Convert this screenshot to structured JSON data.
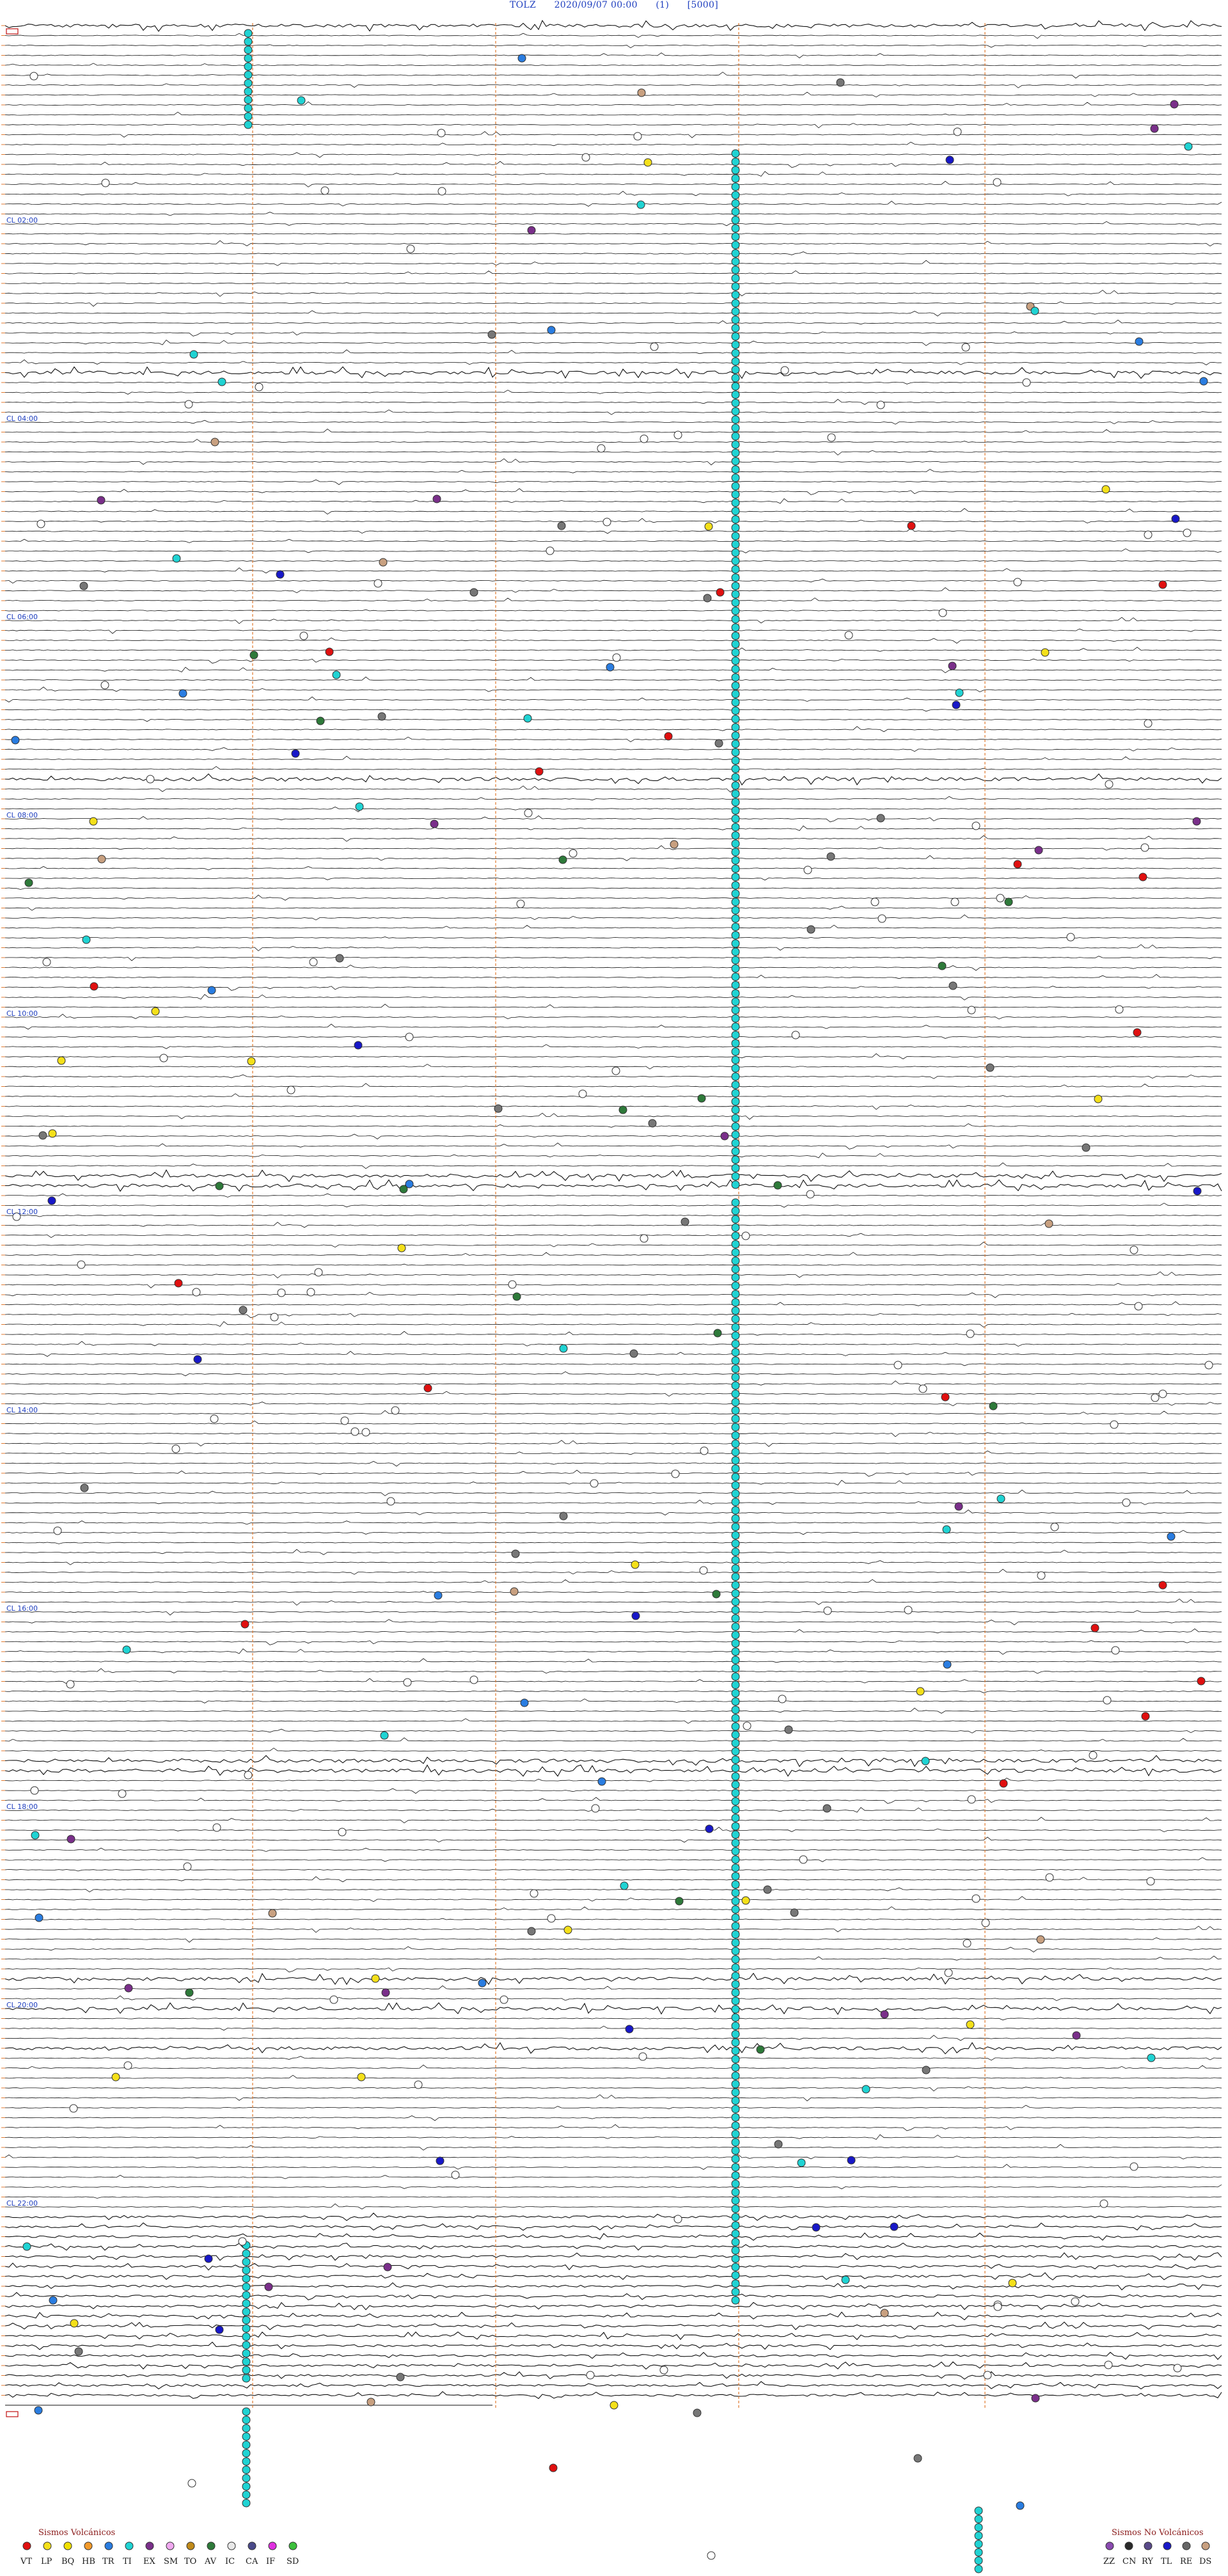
{
  "header": {
    "station": "TOLZ",
    "datetime": "2020/09/07 00:00",
    "channel": "(1)",
    "gain": "[5000]"
  },
  "hour_labels": [
    "CL 02:00",
    "CL 04:00",
    "CL 06:00",
    "CL 08:00",
    "CL 10:00",
    "CL 12:00",
    "CL 14:00",
    "CL 16:00",
    "CL 18:00",
    "CL 20:00",
    "CL 22:00"
  ],
  "legend": {
    "volcanic": {
      "title": "Sismos Volcánicos",
      "items": [
        {
          "code": "VT",
          "color": "#e01010"
        },
        {
          "code": "LP",
          "color": "#f4e01a"
        },
        {
          "code": "BQ",
          "color": "#f0e000"
        },
        {
          "code": "HB",
          "color": "#f39a2a"
        },
        {
          "code": "TR",
          "color": "#2a7de1"
        },
        {
          "code": "TI",
          "color": "#20d3d3"
        },
        {
          "code": "EX",
          "color": "#7a2f8a"
        },
        {
          "code": "SM",
          "color": "#f0a8f0"
        },
        {
          "code": "TO",
          "color": "#c08a1a"
        },
        {
          "code": "AV",
          "color": "#2e7a3a"
        },
        {
          "code": "IC",
          "color": "#e8e8e8"
        },
        {
          "code": "CA",
          "color": "#4a4a8a"
        },
        {
          "code": "IF",
          "color": "#e030e0"
        },
        {
          "code": "SD",
          "color": "#3cc03c"
        }
      ]
    },
    "non_volcanic": {
      "title": "Sismos No Volcánicos",
      "items": [
        {
          "code": "ZZ",
          "color": "#8a4ab0"
        },
        {
          "code": "CN",
          "color": "#2a2a2a"
        },
        {
          "code": "RY",
          "color": "#5a4a8a"
        },
        {
          "code": "TL",
          "color": "#1818c8"
        },
        {
          "code": "RE",
          "color": "#666666"
        },
        {
          "code": "DS",
          "color": "#c8a080"
        }
      ]
    }
  },
  "palette": {
    "trace": "#111111",
    "minute_marker": "#e07a30",
    "header_text": "#1f3fbf",
    "cyan": "#20d3d3",
    "red": "#e01010",
    "yellow": "#f4e01a",
    "blue": "#2a7de1",
    "white": "#ffffff",
    "gray": "#777777",
    "green": "#2e7a3a",
    "navy": "#1818c8",
    "tan": "#c8a080",
    "purple": "#7a2f8a"
  }
}
